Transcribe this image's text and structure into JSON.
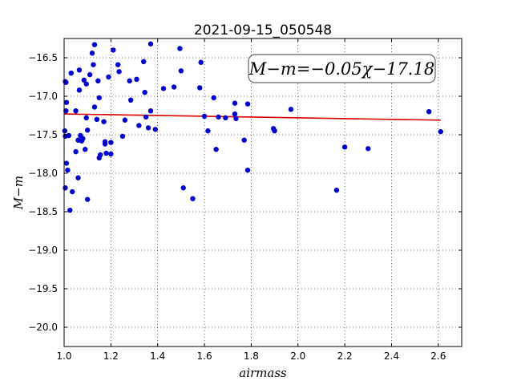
{
  "chart_data": {
    "type": "scatter",
    "title": "2021-09-15_050548",
    "xlabel": "airmass",
    "ylabel": "M−m",
    "xlim": [
      1.0,
      2.7
    ],
    "ylim": [
      -16.25,
      -20.25
    ],
    "y_inverted": true,
    "grid": true,
    "x_ticks": [
      "1.0",
      "1.2",
      "1.4",
      "1.6",
      "1.8",
      "2.0",
      "2.2",
      "2.4",
      "2.6"
    ],
    "y_ticks": [
      "−16.5",
      "−17.0",
      "−17.5",
      "−18.0",
      "−18.5",
      "−19.0",
      "−19.5",
      "−20.0"
    ],
    "annotation": "M−m=−0.05χ−17.18",
    "point_color": "#0000cc",
    "fit_color": "#dd0000",
    "fit": {
      "slope": -0.05,
      "intercept": -17.18,
      "x_range": [
        1.0,
        2.61
      ]
    },
    "points": [
      [
        1.005,
        -16.81
      ],
      [
        1.008,
        -16.82
      ],
      [
        1.01,
        -17.08
      ],
      [
        1.008,
        -17.19
      ],
      [
        1.003,
        -17.45
      ],
      [
        1.005,
        -17.52
      ],
      [
        1.01,
        -17.87
      ],
      [
        1.015,
        -17.96
      ],
      [
        1.005,
        -18.19
      ],
      [
        1.02,
        -17.51
      ],
      [
        1.025,
        -18.48
      ],
      [
        1.03,
        -16.7
      ],
      [
        1.035,
        -18.24
      ],
      [
        1.05,
        -17.19
      ],
      [
        1.05,
        -17.72
      ],
      [
        1.06,
        -17.57
      ],
      [
        1.06,
        -18.06
      ],
      [
        1.065,
        -16.66
      ],
      [
        1.065,
        -16.92
      ],
      [
        1.07,
        -17.51
      ],
      [
        1.075,
        -17.58
      ],
      [
        1.08,
        -17.55
      ],
      [
        1.085,
        -16.79
      ],
      [
        1.09,
        -17.69
      ],
      [
        1.095,
        -16.84
      ],
      [
        1.095,
        -17.28
      ],
      [
        1.1,
        -17.44
      ],
      [
        1.1,
        -18.34
      ],
      [
        1.11,
        -16.72
      ],
      [
        1.12,
        -16.44
      ],
      [
        1.125,
        -16.59
      ],
      [
        1.13,
        -16.33
      ],
      [
        1.13,
        -17.14
      ],
      [
        1.14,
        -17.3
      ],
      [
        1.145,
        -16.8
      ],
      [
        1.15,
        -17.02
      ],
      [
        1.15,
        -17.8
      ],
      [
        1.155,
        -17.76
      ],
      [
        1.17,
        -17.33
      ],
      [
        1.175,
        -17.59
      ],
      [
        1.175,
        -17.62
      ],
      [
        1.18,
        -17.74
      ],
      [
        1.19,
        -16.75
      ],
      [
        1.2,
        -17.6
      ],
      [
        1.2,
        -17.75
      ],
      [
        1.21,
        -16.4
      ],
      [
        1.23,
        -16.59
      ],
      [
        1.235,
        -16.68
      ],
      [
        1.25,
        -17.52
      ],
      [
        1.26,
        -17.31
      ],
      [
        1.28,
        -16.8
      ],
      [
        1.285,
        -17.05
      ],
      [
        1.31,
        -16.78
      ],
      [
        1.32,
        -17.38
      ],
      [
        1.34,
        -16.55
      ],
      [
        1.345,
        -16.95
      ],
      [
        1.35,
        -17.27
      ],
      [
        1.36,
        -17.41
      ],
      [
        1.37,
        -16.32
      ],
      [
        1.37,
        -17.19
      ],
      [
        1.39,
        -17.43
      ],
      [
        1.425,
        -16.9
      ],
      [
        1.47,
        -16.88
      ],
      [
        1.495,
        -16.38
      ],
      [
        1.5,
        -16.67
      ],
      [
        1.51,
        -18.19
      ],
      [
        1.55,
        -18.33
      ],
      [
        1.58,
        -16.89
      ],
      [
        1.585,
        -16.56
      ],
      [
        1.6,
        -17.26
      ],
      [
        1.615,
        -17.45
      ],
      [
        1.64,
        -17.02
      ],
      [
        1.65,
        -17.69
      ],
      [
        1.66,
        -17.27
      ],
      [
        1.69,
        -17.28
      ],
      [
        1.73,
        -17.09
      ],
      [
        1.73,
        -17.23
      ],
      [
        1.735,
        -17.29
      ],
      [
        1.77,
        -17.57
      ],
      [
        1.785,
        -17.1
      ],
      [
        1.785,
        -17.96
      ],
      [
        1.895,
        -17.42
      ],
      [
        1.9,
        -17.45
      ],
      [
        1.97,
        -17.17
      ],
      [
        2.165,
        -18.22
      ],
      [
        2.2,
        -17.66
      ],
      [
        2.3,
        -17.68
      ],
      [
        2.56,
        -17.2
      ],
      [
        2.61,
        -17.46
      ]
    ]
  }
}
